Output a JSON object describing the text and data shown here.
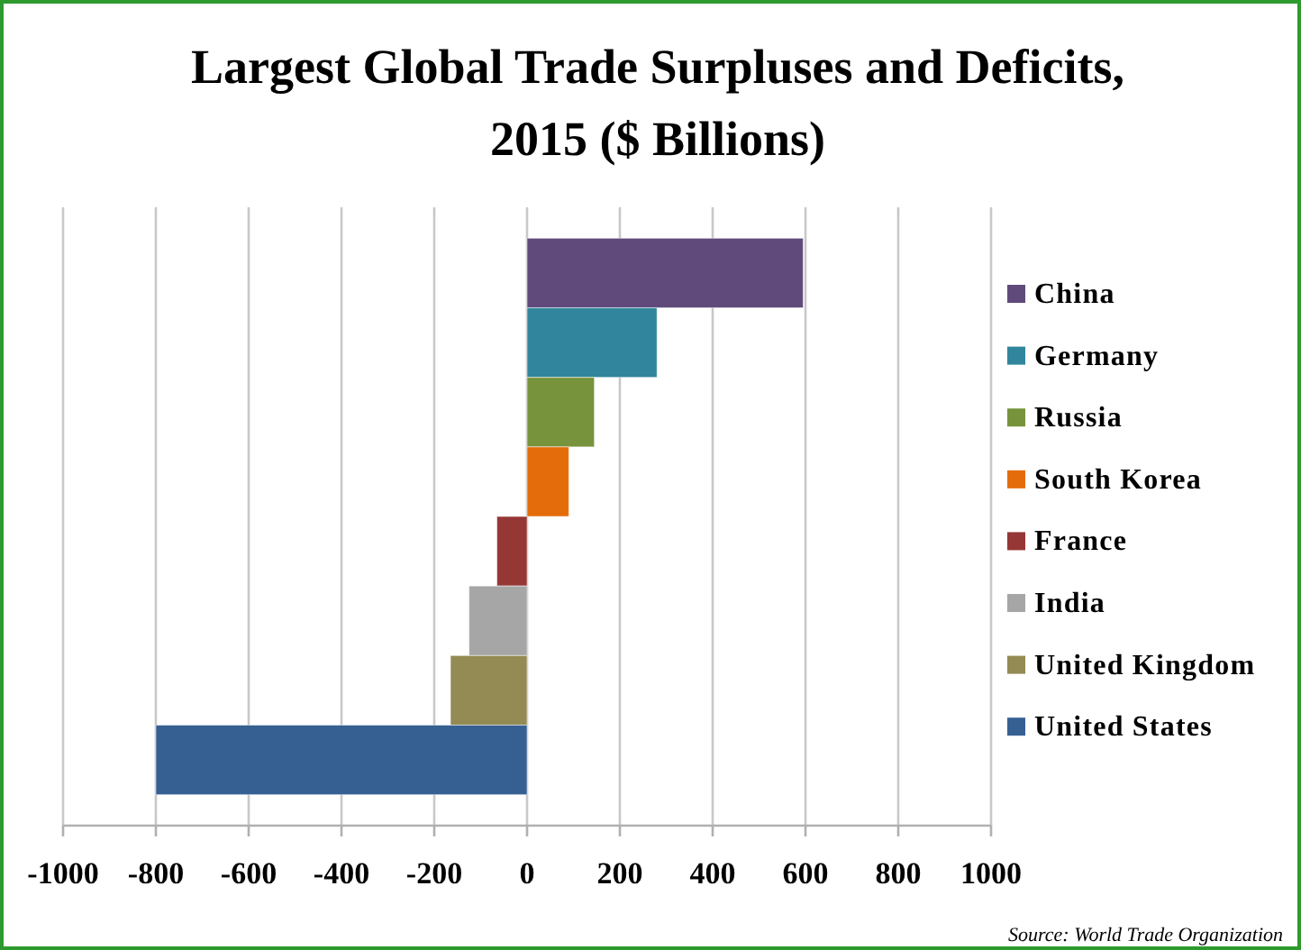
{
  "chart_data": {
    "type": "bar",
    "orientation": "horizontal",
    "title": "Largest Global Trade Surpluses and Deficits, 2015 ($ Billions)",
    "categories": [
      null
    ],
    "series": [
      {
        "name": "China",
        "color": "#604a7b",
        "values": [
          595
        ]
      },
      {
        "name": "Germany",
        "color": "#31859c",
        "values": [
          280
        ]
      },
      {
        "name": "Russia",
        "color": "#77933c",
        "values": [
          145
        ]
      },
      {
        "name": "South Korea",
        "color": "#e46c0a",
        "values": [
          90
        ]
      },
      {
        "name": "France",
        "color": "#953735",
        "values": [
          -65
        ]
      },
      {
        "name": "India",
        "color": "#a6a6a6",
        "values": [
          -125
        ]
      },
      {
        "name": "United Kingdom",
        "color": "#948a54",
        "values": [
          -165
        ]
      },
      {
        "name": "United States",
        "color": "#376092",
        "values": [
          -800
        ]
      }
    ],
    "xlim": [
      -1000,
      1000
    ],
    "xticks": [
      -1000,
      -800,
      -600,
      -400,
      -200,
      0,
      200,
      400,
      600,
      800,
      1000
    ],
    "grid": "x",
    "legend": "right",
    "annotations": [
      "Source: World Trade Organization"
    ]
  }
}
